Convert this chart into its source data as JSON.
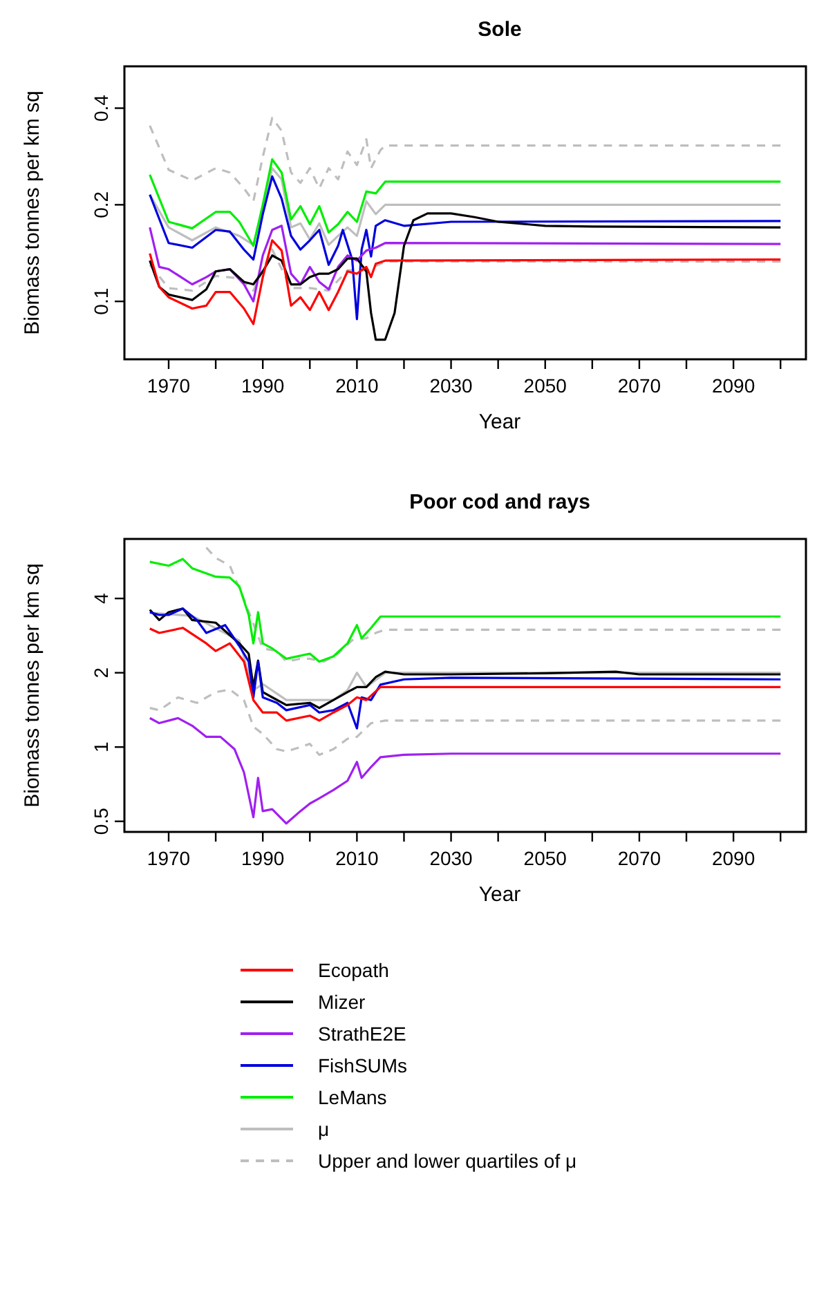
{
  "chart_data": [
    {
      "type": "line",
      "title": "Sole",
      "xlabel": "Year",
      "ylabel": "Biomass tonnes per km sq",
      "log": "y",
      "grid": false,
      "legend": false,
      "marker": "none",
      "xlim": [
        1960.6,
        2105.4
      ],
      "xticks": [
        1970,
        {
          "value": 1980,
          "label": null
        },
        1990,
        {
          "value": 2000,
          "label": null
        },
        2010,
        {
          "value": 2020,
          "label": null
        },
        2030,
        {
          "value": 2040,
          "label": null
        },
        2050,
        {
          "value": 2060,
          "label": null
        },
        2070,
        {
          "value": 2080,
          "label": null
        },
        2090,
        {
          "value": 2100,
          "label": null
        }
      ],
      "ylim": [
        0.066,
        0.54
      ],
      "yticks": [
        0.1,
        0.2,
        0.4
      ],
      "series": [
        {
          "color": "#bebebe",
          "line_style": "dashed",
          "x": [
            1966,
            1970,
            1975,
            1980,
            1983,
            1986,
            1988,
            1990,
            1992,
            1994,
            1996,
            1998,
            2000,
            2002,
            2004,
            2006,
            2008,
            2010,
            2012,
            2013,
            2015,
            2016,
            2100
          ],
          "values": [
            0.353,
            0.257,
            0.238,
            0.26,
            0.252,
            0.225,
            0.205,
            0.282,
            0.373,
            0.34,
            0.252,
            0.234,
            0.26,
            0.225,
            0.26,
            0.24,
            0.293,
            0.266,
            0.32,
            0.26,
            0.296,
            0.306,
            0.306
          ]
        },
        {
          "color": "#bebebe",
          "line_style": "dashed",
          "x": [
            1966,
            1970,
            1975,
            1980,
            1985,
            1988,
            1992,
            1996,
            2000,
            2004,
            2008,
            2012,
            2016,
            2100
          ],
          "values": [
            0.13,
            0.11,
            0.108,
            0.12,
            0.118,
            0.108,
            0.145,
            0.11,
            0.11,
            0.108,
            0.125,
            0.125,
            0.133,
            0.133
          ]
        },
        {
          "color": "#bebebe",
          "line_style": "solid",
          "x": [
            1966,
            1970,
            1975,
            1980,
            1985,
            1988,
            1992,
            1994,
            1996,
            1998,
            2000,
            2002,
            2004,
            2006,
            2008,
            2010,
            2012,
            2014,
            2016,
            2100
          ],
          "values": [
            0.215,
            0.17,
            0.155,
            0.17,
            0.16,
            0.15,
            0.26,
            0.24,
            0.17,
            0.175,
            0.156,
            0.175,
            0.15,
            0.16,
            0.17,
            0.16,
            0.205,
            0.187,
            0.2,
            0.2
          ]
        },
        {
          "color": "#00ee00",
          "line_style": "solid",
          "x": [
            1966,
            1970,
            1975,
            1980,
            1983,
            1985,
            1988,
            1990,
            1992,
            1994,
            1996,
            1998,
            2000,
            2002,
            2004,
            2006,
            2008,
            2010,
            2012,
            2014,
            2016,
            2100
          ],
          "values": [
            0.248,
            0.177,
            0.169,
            0.19,
            0.19,
            0.177,
            0.149,
            0.2,
            0.277,
            0.252,
            0.18,
            0.198,
            0.174,
            0.198,
            0.164,
            0.174,
            0.19,
            0.177,
            0.22,
            0.217,
            0.236,
            0.236
          ]
        },
        {
          "color": "#0000dd",
          "line_style": "solid",
          "x": [
            1966,
            1970,
            1975,
            1980,
            1983,
            1986,
            1988,
            1990,
            1992,
            1994,
            1996,
            1998,
            2000,
            2002,
            2004,
            2006,
            2007,
            2009,
            2010,
            2011,
            2012,
            2013,
            2014,
            2016,
            2020,
            2030,
            2100
          ],
          "values": [
            0.215,
            0.152,
            0.147,
            0.167,
            0.165,
            0.145,
            0.135,
            0.187,
            0.245,
            0.209,
            0.16,
            0.145,
            0.155,
            0.167,
            0.13,
            0.149,
            0.167,
            0.135,
            0.088,
            0.145,
            0.167,
            0.138,
            0.172,
            0.179,
            0.172,
            0.177,
            0.178
          ]
        },
        {
          "color": "#a020f0",
          "line_style": "solid",
          "x": [
            1966,
            1968,
            1970,
            1975,
            1978,
            1980,
            1983,
            1986,
            1988,
            1990,
            1992,
            1994,
            1996,
            1998,
            2000,
            2002,
            2004,
            2006,
            2008,
            2010,
            2012,
            2014,
            2016,
            2100
          ],
          "values": [
            0.17,
            0.128,
            0.126,
            0.113,
            0.119,
            0.124,
            0.126,
            0.113,
            0.1,
            0.139,
            0.167,
            0.172,
            0.122,
            0.113,
            0.128,
            0.115,
            0.109,
            0.128,
            0.139,
            0.134,
            0.144,
            0.147,
            0.152,
            0.151
          ]
        },
        {
          "color": "#000000",
          "line_style": "solid",
          "x": [
            1966,
            1968,
            1970,
            1975,
            1978,
            1980,
            1983,
            1986,
            1988,
            1990,
            1992,
            1994,
            1996,
            1998,
            2000,
            2002,
            2004,
            2006,
            2008,
            2010,
            2012,
            2013,
            2014,
            2016,
            2018,
            2020,
            2022,
            2025,
            2030,
            2035,
            2040,
            2050,
            2060,
            2100
          ],
          "values": [
            0.134,
            0.111,
            0.105,
            0.101,
            0.109,
            0.124,
            0.126,
            0.115,
            0.113,
            0.124,
            0.139,
            0.134,
            0.113,
            0.113,
            0.119,
            0.122,
            0.122,
            0.126,
            0.136,
            0.136,
            0.124,
            0.092,
            0.076,
            0.076,
            0.092,
            0.149,
            0.179,
            0.188,
            0.188,
            0.183,
            0.177,
            0.172,
            0.171,
            0.17
          ]
        },
        {
          "color": "#ff0000",
          "line_style": "solid",
          "x": [
            1966,
            1968,
            1970,
            1975,
            1978,
            1980,
            1983,
            1986,
            1988,
            1990,
            1992,
            1994,
            1996,
            1998,
            2000,
            2002,
            2004,
            2006,
            2008,
            2010,
            2012,
            2013,
            2014,
            2016,
            2100
          ],
          "values": [
            0.141,
            0.111,
            0.103,
            0.095,
            0.097,
            0.107,
            0.107,
            0.095,
            0.085,
            0.119,
            0.155,
            0.144,
            0.097,
            0.103,
            0.094,
            0.107,
            0.094,
            0.107,
            0.124,
            0.122,
            0.128,
            0.119,
            0.131,
            0.134,
            0.135
          ]
        }
      ]
    },
    {
      "type": "line",
      "title": "Poor cod and rays",
      "xlabel": "Year",
      "ylabel": "Biomass tonnes per km sq",
      "log": "y",
      "grid": false,
      "legend": "bottom",
      "marker": "none",
      "xlim": [
        1960.6,
        2105.4
      ],
      "xticks": [
        1970,
        {
          "value": 1980,
          "label": null
        },
        1990,
        {
          "value": 2000,
          "label": null
        },
        2010,
        {
          "value": 2020,
          "label": null
        },
        2030,
        {
          "value": 2040,
          "label": null
        },
        2050,
        {
          "value": 2060,
          "label": null
        },
        2070,
        {
          "value": 2080,
          "label": null
        },
        2090,
        {
          "value": 2100,
          "label": null
        }
      ],
      "ylim": [
        0.453,
        6.97
      ],
      "yticks": [
        0.5,
        1,
        2,
        4
      ],
      "series": [
        {
          "name": "Upper and lower quartiles of μ",
          "color": "#bebebe",
          "line_style": "dashed",
          "x": [
            1978,
            1980,
            1983,
            1986,
            1990,
            1993,
            1995,
            1998,
            2000,
            2003,
            2006,
            2009,
            2012,
            2014,
            2016,
            2100
          ],
          "values": [
            6.43,
            5.84,
            5.43,
            3.97,
            2.51,
            2.45,
            2.22,
            2.28,
            2.28,
            2.22,
            2.39,
            2.71,
            2.76,
            2.9,
            2.99,
            2.99
          ]
        },
        {
          "color": "#bebebe",
          "line_style": "dashed",
          "x": [
            1966,
            1968,
            1972,
            1976,
            1980,
            1983,
            1986,
            1988,
            1990,
            1993,
            1995,
            1998,
            2000,
            2002,
            2005,
            2008,
            2010,
            2013,
            2016,
            2100
          ],
          "values": [
            1.44,
            1.41,
            1.59,
            1.51,
            1.67,
            1.71,
            1.55,
            1.21,
            1.13,
            0.98,
            0.96,
            1.0,
            1.03,
            0.93,
            0.98,
            1.08,
            1.1,
            1.25,
            1.28,
            1.28
          ]
        },
        {
          "name": "μ",
          "color": "#bebebe",
          "line_style": "solid",
          "x": [
            1966,
            1975,
            1985,
            1988,
            1990,
            1995,
            2000,
            2005,
            2008,
            2010,
            2012,
            2016,
            2100
          ],
          "values": [
            3.5,
            3.4,
            2.7,
            1.7,
            1.8,
            1.55,
            1.55,
            1.55,
            1.7,
            2.0,
            1.75,
            2.0,
            2.0
          ]
        },
        {
          "name": "LeMans",
          "color": "#00ee00",
          "line_style": "solid",
          "x": [
            1966,
            1970,
            1973,
            1975,
            1980,
            1983,
            1985,
            1987,
            1988,
            1989,
            1990,
            1992,
            1995,
            2000,
            2002,
            2005,
            2008,
            2010,
            2011,
            2013,
            2015,
            2100
          ],
          "values": [
            5.63,
            5.43,
            5.78,
            5.3,
            4.9,
            4.86,
            4.48,
            3.43,
            2.63,
            3.52,
            2.63,
            2.51,
            2.28,
            2.39,
            2.22,
            2.33,
            2.63,
            3.12,
            2.76,
            3.04,
            3.38,
            3.38
          ]
        },
        {
          "name": "Mizer",
          "color": "#000000",
          "line_style": "solid",
          "x": [
            1966,
            1968,
            1970,
            1973,
            1975,
            1980,
            1985,
            1987,
            1988,
            1989,
            1990,
            1992,
            1995,
            2000,
            2002,
            2005,
            2008,
            2010,
            2012,
            2014,
            2016,
            2020,
            2030,
            2050,
            2065,
            2070,
            2100
          ],
          "values": [
            3.6,
            3.27,
            3.52,
            3.64,
            3.27,
            3.19,
            2.63,
            2.39,
            1.75,
            2.24,
            1.67,
            1.59,
            1.48,
            1.51,
            1.44,
            1.55,
            1.67,
            1.75,
            1.75,
            1.92,
            2.02,
            1.97,
            1.97,
            1.99,
            2.02,
            1.97,
            1.97
          ]
        },
        {
          "name": "FishSUMs",
          "color": "#0000dd",
          "line_style": "solid",
          "x": [
            1966,
            1968,
            1970,
            1973,
            1976,
            1978,
            1982,
            1985,
            1987,
            1988,
            1989,
            1990,
            1993,
            1995,
            2000,
            2002,
            2005,
            2008,
            2010,
            2011,
            2013,
            2015,
            2020,
            2030,
            2100
          ],
          "values": [
            3.52,
            3.43,
            3.43,
            3.64,
            3.27,
            2.9,
            3.12,
            2.57,
            2.22,
            1.59,
            2.22,
            1.59,
            1.51,
            1.41,
            1.48,
            1.38,
            1.41,
            1.51,
            1.19,
            1.59,
            1.55,
            1.79,
            1.88,
            1.91,
            1.88
          ]
        },
        {
          "name": "Ecopath",
          "color": "#ff0000",
          "line_style": "solid",
          "x": [
            1966,
            1968,
            1973,
            1978,
            1980,
            1983,
            1986,
            1988,
            1990,
            1993,
            1995,
            2000,
            2002,
            2005,
            2008,
            2010,
            2012,
            2015,
            2100
          ],
          "values": [
            3.02,
            2.9,
            3.04,
            2.63,
            2.45,
            2.63,
            2.22,
            1.55,
            1.38,
            1.38,
            1.28,
            1.34,
            1.28,
            1.38,
            1.48,
            1.59,
            1.55,
            1.75,
            1.75
          ]
        },
        {
          "name": "StrathE2E",
          "color": "#a020f0",
          "line_style": "solid",
          "x": [
            1966,
            1968,
            1972,
            1975,
            1978,
            1981,
            1984,
            1986,
            1988,
            1989,
            1990,
            1992,
            1995,
            1998,
            2000,
            2002,
            2005,
            2008,
            2010,
            2011,
            2013,
            2015,
            2020,
            2030,
            2100
          ],
          "values": [
            1.31,
            1.25,
            1.31,
            1.22,
            1.1,
            1.1,
            0.98,
            0.79,
            0.52,
            0.75,
            0.55,
            0.56,
            0.49,
            0.55,
            0.59,
            0.62,
            0.67,
            0.73,
            0.87,
            0.75,
            0.83,
            0.91,
            0.93,
            0.94,
            0.94
          ]
        }
      ]
    }
  ]
}
